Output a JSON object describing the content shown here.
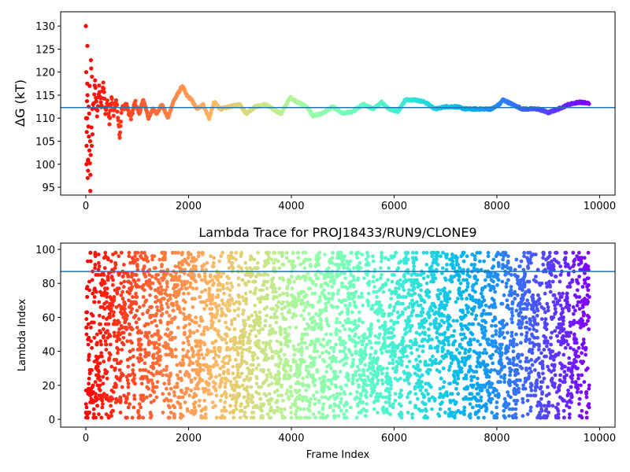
{
  "chart_data": [
    {
      "type": "line",
      "title": "",
      "xlabel": "",
      "ylabel": "ΔG (kT)",
      "xlim": [
        -490,
        10300
      ],
      "ylim": [
        93.3,
        133.1
      ],
      "xticks": [
        "0",
        "2000",
        "4000",
        "6000",
        "8000",
        "10000"
      ],
      "yticks": [
        "95",
        "100",
        "105",
        "110",
        "115",
        "120",
        "125",
        "130"
      ],
      "colormap": "rainbow (red at frame 0 → purple at last frame)",
      "hline": 112.3,
      "hline_color": "#1f77b4",
      "early_points": [
        [
          0,
          130
        ],
        [
          5,
          110
        ],
        [
          8,
          120
        ],
        [
          12,
          100
        ],
        [
          15,
          104
        ],
        [
          18,
          107
        ],
        [
          22,
          113.7
        ],
        [
          25,
          110
        ],
        [
          28,
          117.5
        ],
        [
          30,
          125.7
        ],
        [
          33,
          115
        ],
        [
          36,
          97
        ],
        [
          40,
          100.8
        ],
        [
          43,
          98.6
        ],
        [
          46,
          101
        ],
        [
          50,
          108.2
        ],
        [
          55,
          112.5
        ],
        [
          60,
          106
        ],
        [
          65,
          111
        ],
        [
          70,
          103
        ],
        [
          75,
          117
        ],
        [
          80,
          100.2
        ],
        [
          85,
          105
        ],
        [
          88,
          94.2
        ],
        [
          90,
          97.7
        ],
        [
          95,
          102
        ],
        [
          100,
          122.6
        ],
        [
          105,
          120.8
        ],
        [
          110,
          108
        ],
        [
          115,
          104
        ],
        [
          120,
          119
        ],
        [
          125,
          112
        ],
        [
          130,
          106.5
        ],
        [
          140,
          113
        ]
      ],
      "trace": [
        [
          150,
          112
        ],
        [
          180,
          118
        ],
        [
          220,
          110
        ],
        [
          260,
          117
        ],
        [
          300,
          112
        ],
        [
          340,
          118
        ],
        [
          380,
          111
        ],
        [
          420,
          114
        ],
        [
          460,
          109
        ],
        [
          500,
          114.5
        ],
        [
          540,
          111
        ],
        [
          590,
          114
        ],
        [
          640,
          109
        ],
        [
          660,
          106
        ],
        [
          700,
          112
        ],
        [
          780,
          113
        ],
        [
          880,
          110
        ],
        [
          960,
          113.5
        ],
        [
          1040,
          111
        ],
        [
          1120,
          114
        ],
        [
          1220,
          110
        ],
        [
          1300,
          112
        ],
        [
          1380,
          111
        ],
        [
          1480,
          113
        ],
        [
          1600,
          110
        ],
        [
          1700,
          113.5
        ],
        [
          1800,
          115.5
        ],
        [
          1880,
          117
        ],
        [
          1960,
          115
        ],
        [
          2060,
          114
        ],
        [
          2160,
          112
        ],
        [
          2280,
          113
        ],
        [
          2400,
          110
        ],
        [
          2500,
          113.5
        ],
        [
          2620,
          112
        ],
        [
          2800,
          112.5
        ],
        [
          3000,
          113
        ],
        [
          3120,
          111
        ],
        [
          3300,
          112.5
        ],
        [
          3500,
          113
        ],
        [
          3640,
          112
        ],
        [
          3800,
          111
        ],
        [
          3980,
          114.5
        ],
        [
          4120,
          113.5
        ],
        [
          4300,
          112.5
        ],
        [
          4420,
          110.5
        ],
        [
          4600,
          111
        ],
        [
          4800,
          112.5
        ],
        [
          5000,
          111
        ],
        [
          5200,
          111.5
        ],
        [
          5400,
          113
        ],
        [
          5600,
          112
        ],
        [
          5760,
          113.5
        ],
        [
          5900,
          112
        ],
        [
          6080,
          111.5
        ],
        [
          6220,
          114
        ],
        [
          6400,
          114
        ],
        [
          6600,
          113.5
        ],
        [
          6800,
          112
        ],
        [
          7000,
          112.5
        ],
        [
          7200,
          112.5
        ],
        [
          7400,
          112
        ],
        [
          7600,
          112
        ],
        [
          7900,
          112
        ],
        [
          8050,
          113
        ],
        [
          8120,
          114
        ],
        [
          8300,
          113
        ],
        [
          8500,
          112
        ],
        [
          8800,
          112
        ],
        [
          9000,
          111.2
        ],
        [
          9200,
          112
        ],
        [
          9400,
          113
        ],
        [
          9600,
          113.5
        ],
        [
          9800,
          113.2
        ]
      ]
    },
    {
      "type": "scatter",
      "title": "Lambda Trace for PROJ18433/RUN9/CLONE9",
      "xlabel": "Frame Index",
      "ylabel": "Lambda Index",
      "xlim": [
        -490,
        10300
      ],
      "ylim": [
        -4.6,
        103.7
      ],
      "xticks": [
        "0",
        "2000",
        "4000",
        "6000",
        "8000",
        "10000"
      ],
      "yticks": [
        "0",
        "20",
        "40",
        "60",
        "80",
        "100"
      ],
      "frames": [
        0,
        9800
      ],
      "lambda_range": [
        1,
        98
      ],
      "colormap": "rainbow (red at frame 0 → purple at last frame)",
      "hline": 87,
      "hline_color": "#1f77b4"
    }
  ]
}
